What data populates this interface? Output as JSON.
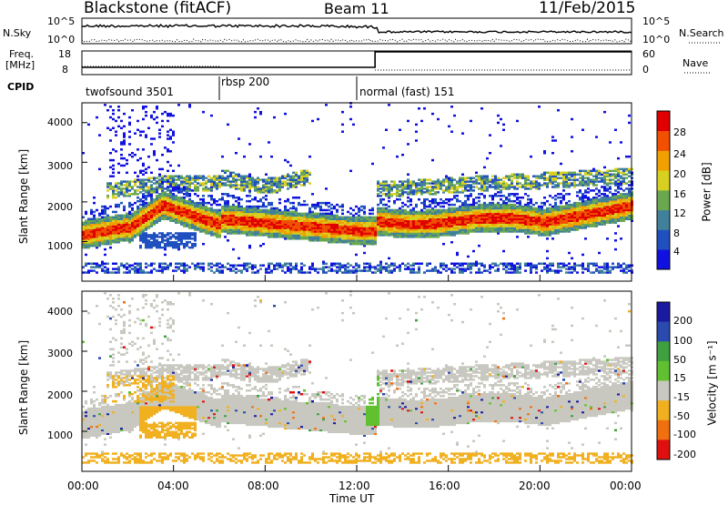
{
  "header": {
    "station": "Blackstone (fitACF)",
    "beam": "Beam 11",
    "date": "11/Feb/2015"
  },
  "left_labels": {
    "nsky": "N.Sky",
    "freq_line1": "Freq.",
    "freq_line2": "[MHz]",
    "cpid": "CPID"
  },
  "right_labels": {
    "nsearch": "N.Search",
    "nave": "Nave"
  },
  "noise_axis": {
    "left_top": "10^5",
    "left_bottom": "10^0",
    "right_top": "10^5",
    "right_bottom": "10^0"
  },
  "freq_axis": {
    "left_top": "18",
    "left_bottom": "8",
    "right_top": "60",
    "right_bottom": "0"
  },
  "cpid_segments": [
    {
      "label": "twofsound 3501",
      "start_h": 0.0,
      "end_h": 6.0
    },
    {
      "label": "rbsp 200",
      "start_h": 6.0,
      "end_h": 12.0
    },
    {
      "label": "normal (fast) 151",
      "start_h": 12.0,
      "end_h": 24.0
    }
  ],
  "chart_data": [
    {
      "type": "heatmap",
      "panel": "power",
      "ylabel": "Slant Range [km]",
      "ylim": [
        0,
        4500
      ],
      "yticks": [
        "1000",
        "2000",
        "3000",
        "4000"
      ],
      "xlim_hours": [
        0,
        24
      ],
      "colorbar_label": "Power [dB]",
      "colorbar_ticks": [
        "4",
        "8",
        "12",
        "16",
        "20",
        "24",
        "28"
      ],
      "colorbar_colors": [
        "#1010e0",
        "#2050c0",
        "#40809a",
        "#6aa850",
        "#d8d020",
        "#f0a000",
        "#f05000",
        "#e00000"
      ],
      "echo_band_main_km": [
        1200,
        1700
      ],
      "echo_band_upper_km": [
        2100,
        2700
      ]
    },
    {
      "type": "heatmap",
      "panel": "velocity",
      "ylabel": "Slant Range [km]",
      "ylim": [
        0,
        4500
      ],
      "yticks": [
        "1000",
        "2000",
        "3000",
        "4000"
      ],
      "xlim_hours": [
        0,
        24
      ],
      "colorbar_label": "Velocity [m s⁻¹]",
      "colorbar_ticks": [
        "200",
        "100",
        "50",
        "15",
        "-15",
        "-50",
        "-100",
        "-200"
      ],
      "colorbar_colors": [
        "#1a1aa0",
        "#2a4ab0",
        "#40a040",
        "#60c030",
        "#c8c8c0",
        "#f0b020",
        "#f07010",
        "#e01010"
      ]
    }
  ],
  "x_axis": {
    "ticks": [
      "00:00",
      "04:00",
      "08:00",
      "12:00",
      "16:00",
      "20:00",
      "00:00"
    ],
    "label": "Time UT"
  }
}
